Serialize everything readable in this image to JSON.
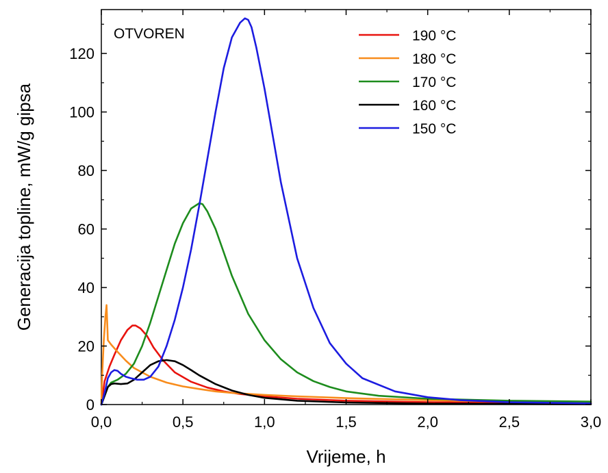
{
  "chart_data": {
    "type": "line",
    "annotation": "OTVOREN",
    "xlabel": "Vrijeme, h",
    "ylabel": "Generacija topline, mW/g gipsa",
    "xlim": [
      0,
      3.0
    ],
    "ylim": [
      0,
      135
    ],
    "x_ticks": [
      "0,0",
      "0,5",
      "1,0",
      "1,5",
      "2,0",
      "2,5",
      "3,0"
    ],
    "x_tick_values": [
      0,
      0.5,
      1.0,
      1.5,
      2.0,
      2.5,
      3.0
    ],
    "y_ticks": [
      "0",
      "20",
      "40",
      "60",
      "80",
      "100",
      "120"
    ],
    "y_tick_values": [
      0,
      20,
      40,
      60,
      80,
      100,
      120
    ],
    "grid": false,
    "legend_position": "top-right",
    "series": [
      {
        "name": "190 °C",
        "color": "#e8130e",
        "x": [
          0,
          0.02,
          0.05,
          0.08,
          0.12,
          0.16,
          0.19,
          0.21,
          0.24,
          0.28,
          0.32,
          0.38,
          0.45,
          0.55,
          0.65,
          0.75,
          0.85,
          1.0,
          1.2,
          1.5,
          2.0,
          2.5,
          3.0
        ],
        "y": [
          0,
          8,
          13,
          17,
          22,
          25.5,
          27,
          27,
          26,
          23.5,
          19.5,
          15,
          11,
          7.8,
          5.8,
          4.5,
          3.6,
          2.8,
          2.0,
          1.3,
          0.8,
          0.6,
          0.5
        ]
      },
      {
        "name": "180 °C",
        "color": "#f88c1c",
        "x": [
          0,
          0.005,
          0.015,
          0.025,
          0.032,
          0.036,
          0.04,
          0.06,
          0.1,
          0.15,
          0.2,
          0.3,
          0.4,
          0.5,
          0.6,
          0.7,
          0.8,
          1.0,
          1.2,
          1.5,
          2.0,
          2.5,
          3.0
        ],
        "y": [
          0,
          10,
          22,
          30,
          34,
          28,
          22,
          20.5,
          18,
          15,
          12.5,
          9.5,
          7.5,
          6.2,
          5.3,
          4.5,
          4.0,
          3.3,
          2.8,
          2.2,
          1.5,
          1.0,
          0.7
        ]
      },
      {
        "name": "170 °C",
        "color": "#1d8c1d",
        "x": [
          0,
          0.02,
          0.04,
          0.06,
          0.1,
          0.15,
          0.2,
          0.25,
          0.3,
          0.35,
          0.4,
          0.45,
          0.5,
          0.55,
          0.6,
          0.62,
          0.65,
          0.7,
          0.75,
          0.8,
          0.9,
          1.0,
          1.1,
          1.2,
          1.3,
          1.4,
          1.5,
          1.7,
          2.0,
          2.5,
          3.0
        ],
        "y": [
          0,
          3,
          6,
          7.5,
          8.5,
          10.5,
          14,
          20,
          28,
          37,
          46,
          55,
          62,
          67,
          68.8,
          68.5,
          66,
          60,
          52,
          44,
          31,
          22,
          15.5,
          11,
          8,
          6,
          4.5,
          3.0,
          2.0,
          1.3,
          1.0
        ]
      },
      {
        "name": "160 °C",
        "color": "#000000",
        "x": [
          0,
          0.02,
          0.04,
          0.06,
          0.08,
          0.12,
          0.16,
          0.2,
          0.25,
          0.3,
          0.35,
          0.4,
          0.45,
          0.5,
          0.55,
          0.6,
          0.7,
          0.8,
          0.9,
          1.0,
          1.2,
          1.5,
          2.0,
          2.5,
          3.0
        ],
        "y": [
          0,
          3,
          6,
          7,
          7.2,
          7,
          7.2,
          8.5,
          11,
          13.5,
          14.8,
          15.2,
          14.8,
          13.5,
          11.8,
          10,
          7,
          4.8,
          3.3,
          2.3,
          1.3,
          0.7,
          0.3,
          0.2,
          0.1
        ]
      },
      {
        "name": "150 °C",
        "color": "#1c1ce0",
        "x": [
          0,
          0.02,
          0.04,
          0.06,
          0.08,
          0.1,
          0.12,
          0.15,
          0.18,
          0.22,
          0.26,
          0.3,
          0.35,
          0.4,
          0.45,
          0.5,
          0.55,
          0.6,
          0.65,
          0.7,
          0.75,
          0.8,
          0.85,
          0.88,
          0.9,
          0.92,
          0.95,
          1.0,
          1.05,
          1.1,
          1.2,
          1.3,
          1.4,
          1.5,
          1.6,
          1.8,
          2.0,
          2.2,
          2.5,
          3.0
        ],
        "y": [
          0,
          4,
          9,
          11,
          11.8,
          11.5,
          10.5,
          9.5,
          9,
          8.5,
          8.5,
          9.5,
          13,
          20,
          29,
          40,
          53,
          68,
          84,
          100,
          115,
          125.5,
          130.5,
          132,
          131.5,
          129,
          122,
          108,
          92,
          76,
          50,
          33,
          21,
          14,
          9,
          4.5,
          2.5,
          1.5,
          0.8,
          0.4
        ]
      }
    ]
  }
}
